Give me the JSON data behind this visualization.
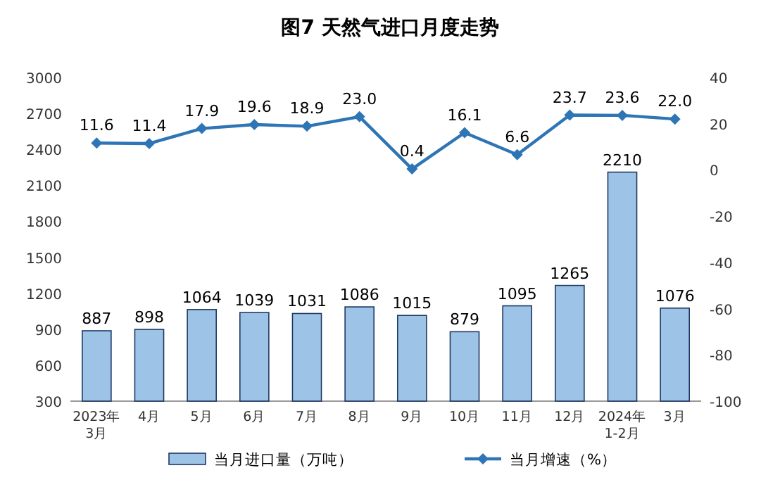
{
  "chart_data": {
    "type": "bar",
    "title": "图7 天然气进口月度走势",
    "categories": [
      "2023年\n3月",
      "4月",
      "5月",
      "6月",
      "7月",
      "8月",
      "9月",
      "10月",
      "11月",
      "12月",
      "2024年\n1-2月",
      "3月"
    ],
    "series": [
      {
        "name": "当月进口量（万吨）",
        "color": "#9dc3e6",
        "values": [
          887,
          898,
          1064,
          1039,
          1031,
          1086,
          1015,
          879,
          1095,
          1265,
          2210,
          1076
        ],
        "value_labels": [
          "887",
          "898",
          "1064",
          "1039",
          "1031",
          "1086",
          "1015",
          "879",
          "1095",
          "1265",
          "2210",
          "1076"
        ]
      },
      {
        "name": "当月增速（%）",
        "type": "line",
        "axis": "y2",
        "color": "#2e75b6",
        "marker": "diamond",
        "values": [
          11.6,
          11.4,
          17.9,
          19.6,
          18.9,
          23.0,
          0.4,
          16.1,
          6.6,
          23.7,
          23.6,
          22.0
        ],
        "value_labels": [
          "11.6",
          "11.4",
          "17.9",
          "19.6",
          "18.9",
          "23.0",
          "0.4",
          "16.1",
          "6.6",
          "23.7",
          "23.6",
          "22.0"
        ]
      }
    ],
    "ylim": [
      300,
      3000
    ],
    "yticks": [
      300,
      600,
      900,
      1200,
      1500,
      1800,
      2100,
      2400,
      2700,
      3000
    ],
    "y2lim": [
      -100,
      40
    ],
    "y2ticks": [
      -100,
      -80,
      -60,
      -40,
      -20,
      0,
      20,
      40
    ],
    "legend": "bottom"
  }
}
